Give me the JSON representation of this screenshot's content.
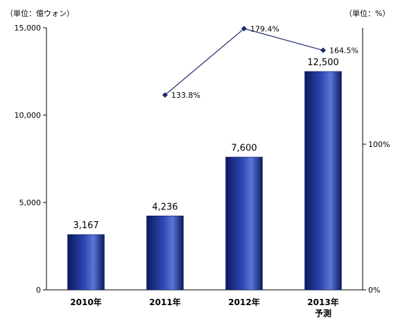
{
  "units": {
    "left": "（単位：億ウォン）",
    "right": "（単位：%）"
  },
  "chart_data": {
    "type": "bar",
    "categories": [
      {
        "line1": "2010年",
        "line2": ""
      },
      {
        "line1": "2011年",
        "line2": ""
      },
      {
        "line1": "2012年",
        "line2": ""
      },
      {
        "line1": "2013年",
        "line2": "予測"
      }
    ],
    "values": [
      3167,
      4236,
      7600,
      12500
    ],
    "value_labels": [
      "3,167",
      "4,236",
      "7,600",
      "12,500"
    ],
    "ylim": [
      0,
      15000
    ],
    "y_ticks": [
      {
        "value": 0,
        "label": "0"
      },
      {
        "value": 5000,
        "label": "5,000"
      },
      {
        "value": 10000,
        "label": "10,000"
      },
      {
        "value": 15000,
        "label": "15,000"
      }
    ],
    "secondary_axis": {
      "type": "line",
      "ylim": [
        0,
        180
      ],
      "ticks": [
        {
          "value": 0,
          "label": "0%"
        },
        {
          "value": 100,
          "label": "100%"
        }
      ],
      "points": [
        {
          "category_index": 1,
          "value": 133.8,
          "label": "133.8%"
        },
        {
          "category_index": 2,
          "value": 179.4,
          "label": "179.4%"
        },
        {
          "category_index": 3,
          "value": 164.5,
          "label": "164.5%"
        }
      ]
    },
    "colors": {
      "bar_dark": "#0c1a5e",
      "bar_mid": "#2d47b3",
      "bar_light": "#5a76d6",
      "line": "#1f2a6b",
      "axis": "#000000"
    },
    "grid": false,
    "legend": "none"
  }
}
